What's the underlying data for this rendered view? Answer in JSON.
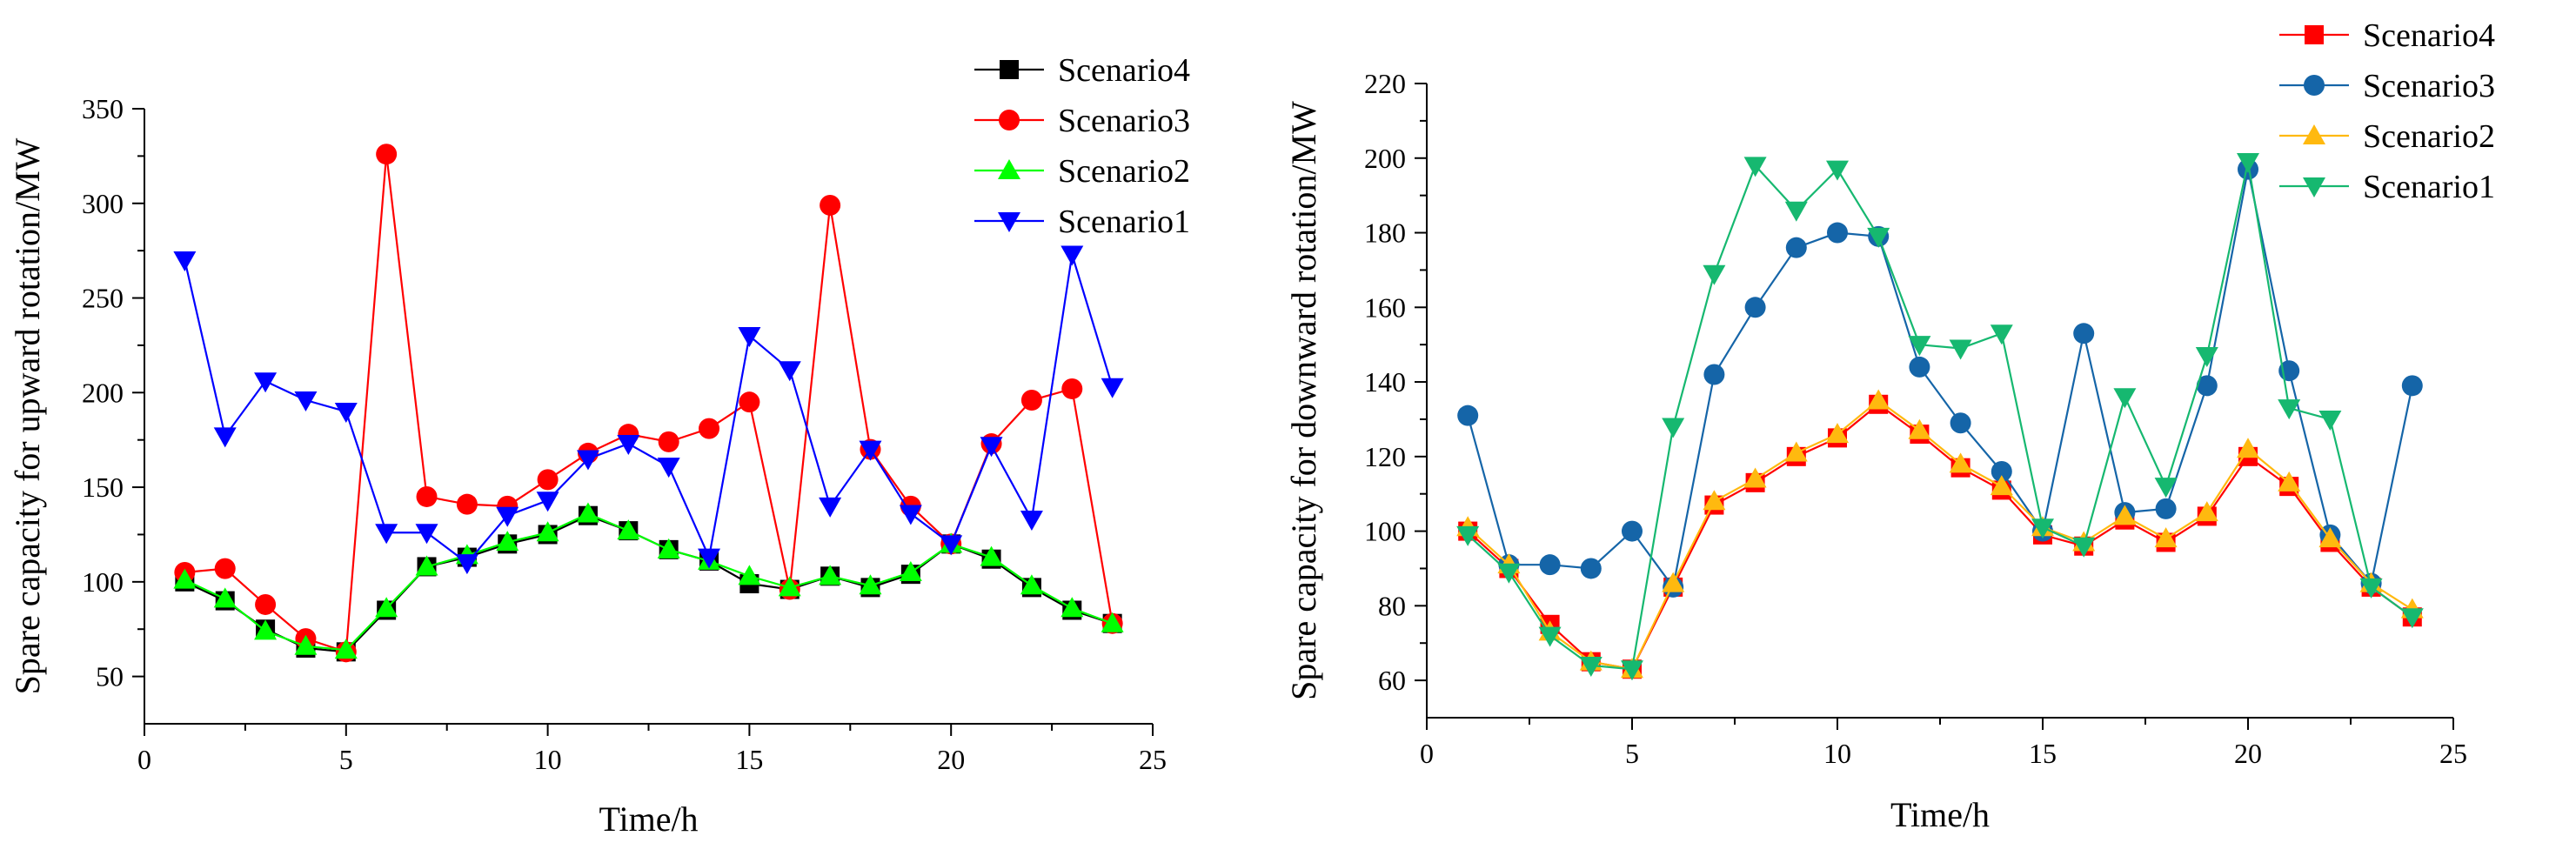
{
  "chart_data": [
    {
      "type": "line",
      "xlabel": "Time/h",
      "ylabel": "Spare capacity for upward rotation/MW",
      "xlim": [
        0,
        25
      ],
      "ylim": [
        25,
        350
      ],
      "xticks": [
        0,
        5,
        10,
        15,
        20,
        25
      ],
      "yticks": [
        50,
        100,
        150,
        200,
        250,
        300,
        350
      ],
      "grid": false,
      "legend_position": "top-right",
      "x": [
        1,
        2,
        3,
        4,
        5,
        6,
        7,
        8,
        9,
        10,
        11,
        12,
        13,
        14,
        15,
        16,
        17,
        18,
        19,
        20,
        21,
        22,
        23,
        24
      ],
      "series": [
        {
          "name": "Scenario4",
          "color": "#000000",
          "marker": "square",
          "values": [
            100,
            90,
            75,
            65,
            63,
            85,
            108,
            113,
            120,
            125,
            135,
            127,
            117,
            111,
            99,
            96,
            103,
            97,
            104,
            120,
            112,
            97,
            85,
            78
          ]
        },
        {
          "name": "Scenario3",
          "color": "#ff0000",
          "marker": "circle",
          "values": [
            105,
            107,
            88,
            70,
            63,
            326,
            145,
            141,
            140,
            154,
            168,
            178,
            174,
            181,
            195,
            96,
            299,
            170,
            140,
            120,
            173,
            196,
            202,
            78
          ]
        },
        {
          "name": "Scenario2",
          "color": "#00ff00",
          "marker": "triangle-up",
          "values": [
            101,
            91,
            74,
            66,
            64,
            86,
            108,
            114,
            121,
            126,
            136,
            127,
            117,
            111,
            103,
            97,
            103,
            98,
            105,
            120,
            113,
            98,
            86,
            78
          ]
        },
        {
          "name": "Scenario1",
          "color": "#0000ff",
          "marker": "triangle-down",
          "values": [
            270,
            177,
            206,
            196,
            190,
            126,
            126,
            110,
            135,
            143,
            165,
            173,
            161,
            113,
            230,
            212,
            140,
            170,
            136,
            120,
            172,
            133,
            273,
            203
          ]
        }
      ]
    },
    {
      "type": "line",
      "xlabel": "Time/h",
      "ylabel": "Spare capacity for downward rotation/MW",
      "xlim": [
        0,
        25
      ],
      "ylim": [
        50,
        220
      ],
      "xticks": [
        0,
        5,
        10,
        15,
        20,
        25
      ],
      "yticks": [
        60,
        80,
        100,
        120,
        140,
        160,
        180,
        200,
        220
      ],
      "grid": false,
      "legend_position": "top-right",
      "x": [
        1,
        2,
        3,
        4,
        5,
        6,
        7,
        8,
        9,
        10,
        11,
        12,
        13,
        14,
        15,
        16,
        17,
        18,
        19,
        20,
        21,
        22,
        23,
        24
      ],
      "series": [
        {
          "name": "Scenario4",
          "color": "#ff0000",
          "marker": "square",
          "values": [
            100,
            90,
            75,
            65,
            63,
            85,
            107,
            113,
            120,
            125,
            134,
            126,
            117,
            111,
            99,
            96,
            103,
            97,
            104,
            120,
            112,
            97,
            85,
            77
          ]
        },
        {
          "name": "Scenario3",
          "color": "#1565a8",
          "marker": "circle",
          "values": [
            131,
            91,
            91,
            90,
            100,
            85,
            142,
            160,
            176,
            180,
            179,
            144,
            129,
            116,
            100,
            153,
            105,
            106,
            139,
            197,
            143,
            99,
            86,
            139
          ]
        },
        {
          "name": "Scenario2",
          "color": "#ffb90f",
          "marker": "triangle-up",
          "values": [
            101,
            91,
            73,
            65,
            63,
            86,
            108,
            114,
            121,
            126,
            135,
            127,
            118,
            112,
            101,
            97,
            104,
            98,
            105,
            122,
            113,
            98,
            86,
            79
          ]
        },
        {
          "name": "Scenario1",
          "color": "#16b870",
          "marker": "triangle-down",
          "values": [
            99,
            89,
            72,
            64,
            63,
            128,
            169,
            198,
            186,
            197,
            179,
            150,
            149,
            153,
            101,
            96,
            136,
            112,
            147,
            199,
            133,
            130,
            85,
            77
          ]
        }
      ]
    }
  ]
}
